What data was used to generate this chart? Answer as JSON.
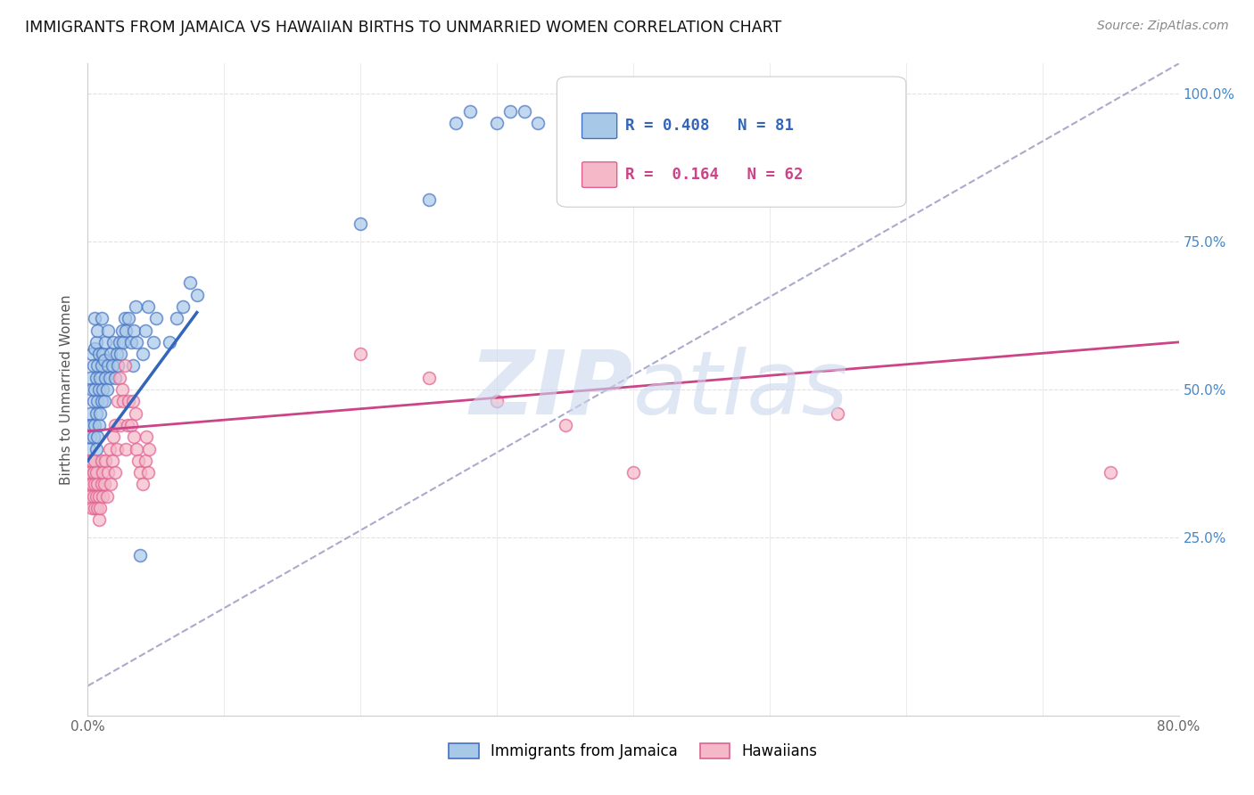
{
  "title": "IMMIGRANTS FROM JAMAICA VS HAWAIIAN BIRTHS TO UNMARRIED WOMEN CORRELATION CHART",
  "source": "Source: ZipAtlas.com",
  "ylabel": "Births to Unmarried Women",
  "ytick_labels": [
    "25.0%",
    "50.0%",
    "75.0%",
    "100.0%"
  ],
  "watermark_zip": "ZIP",
  "watermark_atlas": "atlas",
  "legend_blue_r": "R = 0.408",
  "legend_blue_n": "N = 81",
  "legend_pink_r": "R =  0.164",
  "legend_pink_n": "N = 62",
  "legend_label_blue": "Immigrants from Jamaica",
  "legend_label_pink": "Hawaiians",
  "blue_color": "#a8c8e8",
  "pink_color": "#f4b8c8",
  "blue_edge_color": "#4472c4",
  "pink_edge_color": "#e06090",
  "blue_line_color": "#3366bb",
  "pink_line_color": "#cc4488",
  "blue_scatter": [
    [
      0.001,
      0.4
    ],
    [
      0.001,
      0.44
    ],
    [
      0.002,
      0.42
    ],
    [
      0.002,
      0.46
    ],
    [
      0.002,
      0.52
    ],
    [
      0.003,
      0.38
    ],
    [
      0.003,
      0.44
    ],
    [
      0.003,
      0.5
    ],
    [
      0.003,
      0.56
    ],
    [
      0.004,
      0.36
    ],
    [
      0.004,
      0.42
    ],
    [
      0.004,
      0.48
    ],
    [
      0.004,
      0.54
    ],
    [
      0.005,
      0.38
    ],
    [
      0.005,
      0.44
    ],
    [
      0.005,
      0.5
    ],
    [
      0.005,
      0.57
    ],
    [
      0.005,
      0.62
    ],
    [
      0.006,
      0.4
    ],
    [
      0.006,
      0.46
    ],
    [
      0.006,
      0.52
    ],
    [
      0.006,
      0.58
    ],
    [
      0.007,
      0.42
    ],
    [
      0.007,
      0.48
    ],
    [
      0.007,
      0.54
    ],
    [
      0.007,
      0.6
    ],
    [
      0.008,
      0.44
    ],
    [
      0.008,
      0.5
    ],
    [
      0.008,
      0.56
    ],
    [
      0.009,
      0.46
    ],
    [
      0.009,
      0.52
    ],
    [
      0.01,
      0.48
    ],
    [
      0.01,
      0.54
    ],
    [
      0.01,
      0.62
    ],
    [
      0.011,
      0.5
    ],
    [
      0.011,
      0.56
    ],
    [
      0.012,
      0.48
    ],
    [
      0.012,
      0.55
    ],
    [
      0.013,
      0.52
    ],
    [
      0.013,
      0.58
    ],
    [
      0.014,
      0.5
    ],
    [
      0.015,
      0.54
    ],
    [
      0.015,
      0.6
    ],
    [
      0.016,
      0.52
    ],
    [
      0.017,
      0.56
    ],
    [
      0.018,
      0.54
    ],
    [
      0.019,
      0.58
    ],
    [
      0.02,
      0.52
    ],
    [
      0.021,
      0.56
    ],
    [
      0.022,
      0.54
    ],
    [
      0.023,
      0.58
    ],
    [
      0.024,
      0.56
    ],
    [
      0.025,
      0.6
    ],
    [
      0.026,
      0.58
    ],
    [
      0.027,
      0.62
    ],
    [
      0.028,
      0.6
    ],
    [
      0.03,
      0.62
    ],
    [
      0.032,
      0.58
    ],
    [
      0.033,
      0.54
    ],
    [
      0.034,
      0.6
    ],
    [
      0.035,
      0.64
    ],
    [
      0.036,
      0.58
    ],
    [
      0.038,
      0.22
    ],
    [
      0.04,
      0.56
    ],
    [
      0.042,
      0.6
    ],
    [
      0.044,
      0.64
    ],
    [
      0.048,
      0.58
    ],
    [
      0.05,
      0.62
    ],
    [
      0.06,
      0.58
    ],
    [
      0.065,
      0.62
    ],
    [
      0.07,
      0.64
    ],
    [
      0.075,
      0.68
    ],
    [
      0.08,
      0.66
    ],
    [
      0.2,
      0.78
    ],
    [
      0.25,
      0.82
    ],
    [
      0.27,
      0.95
    ],
    [
      0.28,
      0.97
    ],
    [
      0.3,
      0.95
    ],
    [
      0.31,
      0.97
    ],
    [
      0.32,
      0.97
    ],
    [
      0.33,
      0.95
    ]
  ],
  "pink_scatter": [
    [
      0.001,
      0.34
    ],
    [
      0.001,
      0.38
    ],
    [
      0.002,
      0.32
    ],
    [
      0.002,
      0.36
    ],
    [
      0.003,
      0.3
    ],
    [
      0.003,
      0.34
    ],
    [
      0.003,
      0.38
    ],
    [
      0.004,
      0.32
    ],
    [
      0.004,
      0.36
    ],
    [
      0.005,
      0.3
    ],
    [
      0.005,
      0.34
    ],
    [
      0.005,
      0.38
    ],
    [
      0.006,
      0.32
    ],
    [
      0.006,
      0.36
    ],
    [
      0.007,
      0.3
    ],
    [
      0.007,
      0.34
    ],
    [
      0.008,
      0.28
    ],
    [
      0.008,
      0.32
    ],
    [
      0.009,
      0.3
    ],
    [
      0.01,
      0.34
    ],
    [
      0.01,
      0.38
    ],
    [
      0.011,
      0.32
    ],
    [
      0.011,
      0.36
    ],
    [
      0.012,
      0.34
    ],
    [
      0.013,
      0.38
    ],
    [
      0.014,
      0.32
    ],
    [
      0.015,
      0.36
    ],
    [
      0.016,
      0.4
    ],
    [
      0.017,
      0.34
    ],
    [
      0.018,
      0.38
    ],
    [
      0.019,
      0.42
    ],
    [
      0.02,
      0.36
    ],
    [
      0.02,
      0.44
    ],
    [
      0.021,
      0.4
    ],
    [
      0.022,
      0.48
    ],
    [
      0.023,
      0.52
    ],
    [
      0.024,
      0.44
    ],
    [
      0.025,
      0.5
    ],
    [
      0.026,
      0.48
    ],
    [
      0.027,
      0.54
    ],
    [
      0.028,
      0.4
    ],
    [
      0.029,
      0.44
    ],
    [
      0.03,
      0.48
    ],
    [
      0.032,
      0.44
    ],
    [
      0.033,
      0.48
    ],
    [
      0.034,
      0.42
    ],
    [
      0.035,
      0.46
    ],
    [
      0.036,
      0.4
    ],
    [
      0.037,
      0.38
    ],
    [
      0.038,
      0.36
    ],
    [
      0.04,
      0.34
    ],
    [
      0.042,
      0.38
    ],
    [
      0.043,
      0.42
    ],
    [
      0.044,
      0.36
    ],
    [
      0.045,
      0.4
    ],
    [
      0.2,
      0.56
    ],
    [
      0.25,
      0.52
    ],
    [
      0.3,
      0.48
    ],
    [
      0.35,
      0.44
    ],
    [
      0.4,
      0.36
    ],
    [
      0.55,
      0.46
    ],
    [
      0.75,
      0.36
    ]
  ],
  "xlim": [
    0.0,
    0.8
  ],
  "ylim": [
    -0.05,
    1.05
  ],
  "ytick_positions": [
    0.25,
    0.5,
    0.75,
    1.0
  ],
  "blue_trendline_x": [
    0.0,
    0.08
  ],
  "blue_trendline_y": [
    0.38,
    0.63
  ],
  "pink_trendline_x": [
    0.0,
    0.8
  ],
  "pink_trendline_y": [
    0.43,
    0.58
  ],
  "dashed_line_x": [
    0.0,
    0.8
  ],
  "dashed_line_y": [
    0.0,
    1.05
  ],
  "dashed_color": "#aaaacc",
  "grid_color": "#e0e0e8",
  "bg_color": "#ffffff",
  "title_color": "#111111",
  "source_color": "#888888",
  "ylabel_color": "#555555",
  "ytick_color": "#4488cc",
  "xtick_color": "#666666"
}
